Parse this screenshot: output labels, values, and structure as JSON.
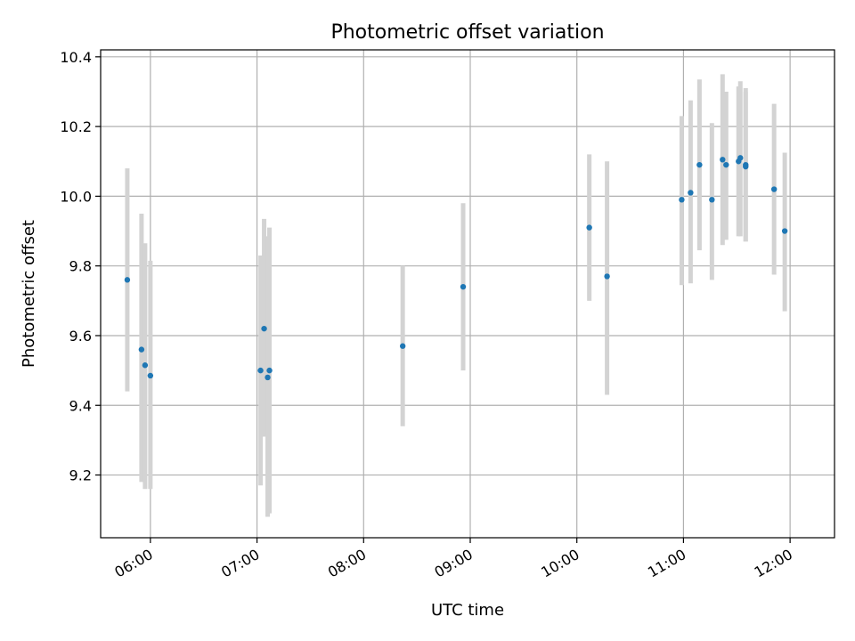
{
  "chart_data": {
    "type": "scatter",
    "title": "Photometric offset variation",
    "xlabel": "UTC time",
    "ylabel": "Photometric offset",
    "x_axis": "time",
    "xlim": [
      "05:32",
      "12:25"
    ],
    "ylim": [
      9.02,
      10.42
    ],
    "xticks": [
      "06:00",
      "07:00",
      "08:00",
      "09:00",
      "10:00",
      "11:00",
      "12:00"
    ],
    "yticks": [
      9.2,
      9.4,
      9.6,
      9.8,
      10.0,
      10.2,
      10.4
    ],
    "ytick_labels": [
      "9.2",
      "9.4",
      "9.6",
      "9.8",
      "10.0",
      "10.2",
      "10.4"
    ],
    "grid": true,
    "point_color": "#1f77b4",
    "errorbar_color": "#d3d3d3",
    "points": [
      {
        "time": "05:47",
        "value": 9.76,
        "low": 9.44,
        "high": 10.08
      },
      {
        "time": "05:55",
        "value": 9.56,
        "low": 9.18,
        "high": 9.95
      },
      {
        "time": "05:57",
        "value": 9.515,
        "low": 9.16,
        "high": 9.865
      },
      {
        "time": "06:00",
        "value": 9.485,
        "low": 9.16,
        "high": 9.815
      },
      {
        "time": "07:02",
        "value": 9.5,
        "low": 9.17,
        "high": 9.83
      },
      {
        "time": "07:04",
        "value": 9.62,
        "low": 9.31,
        "high": 9.935
      },
      {
        "time": "07:06",
        "value": 9.48,
        "low": 9.08,
        "high": 9.885
      },
      {
        "time": "07:07",
        "value": 9.5,
        "low": 9.09,
        "high": 9.91
      },
      {
        "time": "08:22",
        "value": 9.57,
        "low": 9.34,
        "high": 9.8
      },
      {
        "time": "08:56",
        "value": 9.74,
        "low": 9.5,
        "high": 9.98
      },
      {
        "time": "10:07",
        "value": 9.91,
        "low": 9.7,
        "high": 10.12
      },
      {
        "time": "10:17",
        "value": 9.77,
        "low": 9.43,
        "high": 10.1
      },
      {
        "time": "10:59",
        "value": 9.99,
        "low": 9.745,
        "high": 10.23
      },
      {
        "time": "11:04",
        "value": 10.01,
        "low": 9.75,
        "high": 10.275
      },
      {
        "time": "11:09",
        "value": 10.09,
        "low": 9.845,
        "high": 10.335
      },
      {
        "time": "11:16",
        "value": 9.99,
        "low": 9.76,
        "high": 10.21
      },
      {
        "time": "11:22",
        "value": 10.105,
        "low": 9.86,
        "high": 10.35
      },
      {
        "time": "11:24",
        "value": 10.09,
        "low": 9.875,
        "high": 10.3
      },
      {
        "time": "11:31",
        "value": 10.1,
        "low": 9.885,
        "high": 10.315
      },
      {
        "time": "11:32",
        "value": 10.11,
        "low": 9.885,
        "high": 10.33
      },
      {
        "time": "11:35",
        "value": 10.09,
        "low": 9.87,
        "high": 10.31
      },
      {
        "time": "11:35",
        "value": 10.085,
        "low": 9.87,
        "high": 10.3
      },
      {
        "time": "11:51",
        "value": 10.02,
        "low": 9.775,
        "high": 10.265
      },
      {
        "time": "11:57",
        "value": 9.9,
        "low": 9.67,
        "high": 10.125
      }
    ]
  }
}
